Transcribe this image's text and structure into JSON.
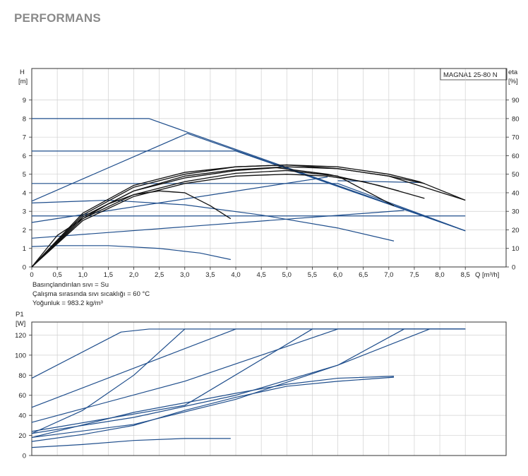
{
  "page": {
    "title": "PERFORMANS"
  },
  "colors": {
    "system": "#1f4e8c",
    "pump": "#111111",
    "grid": "#d0d0d0",
    "frame": "#333333"
  },
  "notes": [
    "Basınçlandırılan sıvı = Su",
    "Çalışma sırasında sıvı sıcaklığı = 60 °C",
    "Yoğunluk = 983.2 kg/m³"
  ],
  "chart_data": [
    {
      "type": "line",
      "model_label": "MAGNA1 25-80 N",
      "ylabel_left": [
        "H",
        "[m]"
      ],
      "ylabel_right": [
        "eta",
        "[%]"
      ],
      "xlabel": "Q [m³/h]",
      "xlim": [
        0,
        9.3
      ],
      "ylim": [
        0,
        10.7
      ],
      "y2lim": [
        0,
        107
      ],
      "xticks": [
        "0",
        "0,5",
        "1,0",
        "1,5",
        "2,0",
        "2,5",
        "3,0",
        "3,5",
        "4,0",
        "4,5",
        "5,0",
        "5,5",
        "6,0",
        "6,5",
        "7,0",
        "7,5",
        "8,0",
        "8,5"
      ],
      "xtick_values": [
        0,
        0.5,
        1,
        1.5,
        2,
        2.5,
        3,
        3.5,
        4,
        4.5,
        5,
        5.5,
        6,
        6.5,
        7,
        7.5,
        8,
        8.5
      ],
      "yticks": [
        "0",
        "1",
        "2",
        "3",
        "4",
        "5",
        "6",
        "7",
        "8",
        "9"
      ],
      "y2ticks": [
        "0",
        "10",
        "20",
        "30",
        "40",
        "50",
        "60",
        "70",
        "80",
        "90"
      ],
      "grid": true,
      "series": [
        {
          "role": "control-max",
          "points": [
            [
              0,
              8
            ],
            [
              2.3,
              8
            ],
            [
              8.5,
              1.95
            ]
          ]
        },
        {
          "role": "control",
          "points": [
            [
              0,
              6.25
            ],
            [
              4,
              6.25
            ],
            [
              8.5,
              1.95
            ]
          ]
        },
        {
          "role": "control",
          "points": [
            [
              0,
              4.5
            ],
            [
              6,
              4.5
            ],
            [
              8.5,
              1.95
            ]
          ]
        },
        {
          "role": "control",
          "points": [
            [
              0,
              2.75
            ],
            [
              8.5,
              2.75
            ]
          ]
        },
        {
          "role": "control",
          "points": [
            [
              0,
              3.55
            ],
            [
              3.05,
              7.2
            ],
            [
              8.5,
              1.95
            ]
          ]
        },
        {
          "role": "control",
          "points": [
            [
              0,
              2.4
            ],
            [
              5.8,
              4.85
            ]
          ]
        },
        {
          "role": "control",
          "points": [
            [
              0,
              1.55
            ],
            [
              7.3,
              3.05
            ]
          ]
        },
        {
          "role": "control",
          "points": [
            [
              0,
              1.1
            ],
            [
              0.5,
              1.15
            ],
            [
              1.5,
              1.15
            ],
            [
              2.5,
              1.0
            ],
            [
              3.3,
              0.75
            ],
            [
              3.9,
              0.4
            ]
          ]
        },
        {
          "role": "control",
          "points": [
            [
              0,
              3.45
            ],
            [
              1.5,
              3.6
            ],
            [
              3,
              3.35
            ],
            [
              4.5,
              2.8
            ],
            [
              6,
              2.1
            ],
            [
              7.1,
              1.4
            ]
          ]
        },
        {
          "role": "control",
          "points": [
            [
              6,
              4.65
            ],
            [
              7.6,
              4.55
            ]
          ]
        },
        {
          "role": "efficiency",
          "points": [
            [
              0,
              0
            ],
            [
              0.5,
              17
            ],
            [
              1,
              26
            ],
            [
              1.5,
              34
            ],
            [
              2,
              39
            ],
            [
              2.5,
              41
            ],
            [
              3,
              40
            ],
            [
              3.5,
              33
            ],
            [
              3.9,
              26
            ]
          ]
        },
        {
          "role": "efficiency",
          "points": [
            [
              0,
              0
            ],
            [
              1,
              25
            ],
            [
              2,
              38
            ],
            [
              3,
              45
            ],
            [
              4,
              49
            ],
            [
              5,
              50
            ],
            [
              5.8,
              49
            ],
            [
              6.5,
              46
            ],
            [
              7.2,
              41
            ]
          ]
        },
        {
          "role": "efficiency",
          "points": [
            [
              0,
              0
            ],
            [
              1,
              26
            ],
            [
              2,
              39
            ],
            [
              3,
              46
            ],
            [
              4,
              50.5
            ],
            [
              5,
              52
            ],
            [
              6,
              49
            ],
            [
              7.1,
              33
            ]
          ]
        },
        {
          "role": "efficiency",
          "points": [
            [
              0,
              0
            ],
            [
              1,
              27
            ],
            [
              2,
              41
            ],
            [
              3,
              48
            ],
            [
              4,
              52
            ],
            [
              4.8,
              53.5
            ],
            [
              5.8,
              50
            ],
            [
              6.8,
              44
            ],
            [
              7.7,
              37
            ]
          ]
        },
        {
          "role": "efficiency",
          "points": [
            [
              0,
              0
            ],
            [
              1,
              27
            ],
            [
              2,
              41
            ],
            [
              3,
              49
            ],
            [
              4,
              52.5
            ],
            [
              5,
              54
            ],
            [
              6,
              53
            ],
            [
              7,
              49
            ],
            [
              7.7,
              45
            ]
          ]
        },
        {
          "role": "efficiency",
          "points": [
            [
              0,
              0
            ],
            [
              1,
              28
            ],
            [
              2,
              43
            ],
            [
              3,
              50
            ],
            [
              4,
              54
            ],
            [
              5,
              55
            ],
            [
              6,
              53
            ],
            [
              7,
              49
            ],
            [
              8.5,
              36
            ]
          ]
        },
        {
          "role": "efficiency",
          "points": [
            [
              0,
              0
            ],
            [
              1,
              29
            ],
            [
              2,
              44
            ],
            [
              3,
              51
            ],
            [
              4,
              54
            ],
            [
              5,
              55
            ],
            [
              6,
              54
            ],
            [
              7,
              50
            ],
            [
              7.6,
              46
            ],
            [
              8.5,
              36
            ]
          ]
        }
      ]
    },
    {
      "type": "line",
      "ylabel_left": [
        "P1",
        "[W]"
      ],
      "xlim": [
        0,
        9.3
      ],
      "ylim": [
        0,
        133
      ],
      "xtick_values": [
        0,
        0.5,
        1,
        1.5,
        2,
        2.5,
        3,
        3.5,
        4,
        4.5,
        5,
        5.5,
        6,
        6.5,
        7,
        7.5,
        8,
        8.5
      ],
      "yticks": [
        "0",
        "20",
        "40",
        "60",
        "80",
        "100",
        "120"
      ],
      "ytick_values": [
        0,
        20,
        40,
        60,
        80,
        100,
        120
      ],
      "grid": true,
      "series": [
        {
          "role": "power",
          "points": [
            [
              0,
              77
            ],
            [
              1.75,
              123
            ],
            [
              2.3,
              126
            ],
            [
              8.5,
              126
            ]
          ]
        },
        {
          "role": "power",
          "points": [
            [
              0,
              48
            ],
            [
              4,
              126
            ],
            [
              8.5,
              126
            ]
          ]
        },
        {
          "role": "power",
          "points": [
            [
              0,
              22
            ],
            [
              1,
              45
            ],
            [
              2,
              80
            ],
            [
              3,
              126
            ],
            [
              8.5,
              126
            ]
          ]
        },
        {
          "role": "power",
          "points": [
            [
              0,
              33
            ],
            [
              3,
              74
            ],
            [
              6,
              126
            ],
            [
              8.5,
              126
            ]
          ]
        },
        {
          "role": "power",
          "points": [
            [
              0,
              24
            ],
            [
              3,
              50
            ],
            [
              5.5,
              126
            ],
            [
              8.5,
              126
            ]
          ]
        },
        {
          "role": "power",
          "points": [
            [
              0,
              18
            ],
            [
              2,
              31
            ],
            [
              4,
              56
            ],
            [
              6,
              90
            ],
            [
              7.3,
              126
            ],
            [
              8.5,
              126
            ]
          ]
        },
        {
          "role": "power",
          "points": [
            [
              0,
              22
            ],
            [
              2,
              38
            ],
            [
              4,
              60
            ],
            [
              6,
              90
            ],
            [
              7.8,
              126
            ],
            [
              8.5,
              126
            ]
          ]
        },
        {
          "role": "power",
          "points": [
            [
              0,
              18
            ],
            [
              2,
              43
            ],
            [
              4,
              62
            ],
            [
              5,
              71
            ],
            [
              6,
              77
            ],
            [
              7.1,
              79
            ]
          ]
        },
        {
          "role": "power",
          "points": [
            [
              0,
              14
            ],
            [
              1,
              21
            ],
            [
              2,
              30
            ],
            [
              3,
              45
            ],
            [
              4,
              58
            ],
            [
              5,
              69
            ],
            [
              6,
              74
            ],
            [
              7.1,
              78
            ]
          ]
        },
        {
          "role": "power",
          "points": [
            [
              0,
              8
            ],
            [
              1,
              11
            ],
            [
              2,
              15
            ],
            [
              3,
              17
            ],
            [
              3.9,
              17
            ]
          ]
        }
      ]
    }
  ]
}
